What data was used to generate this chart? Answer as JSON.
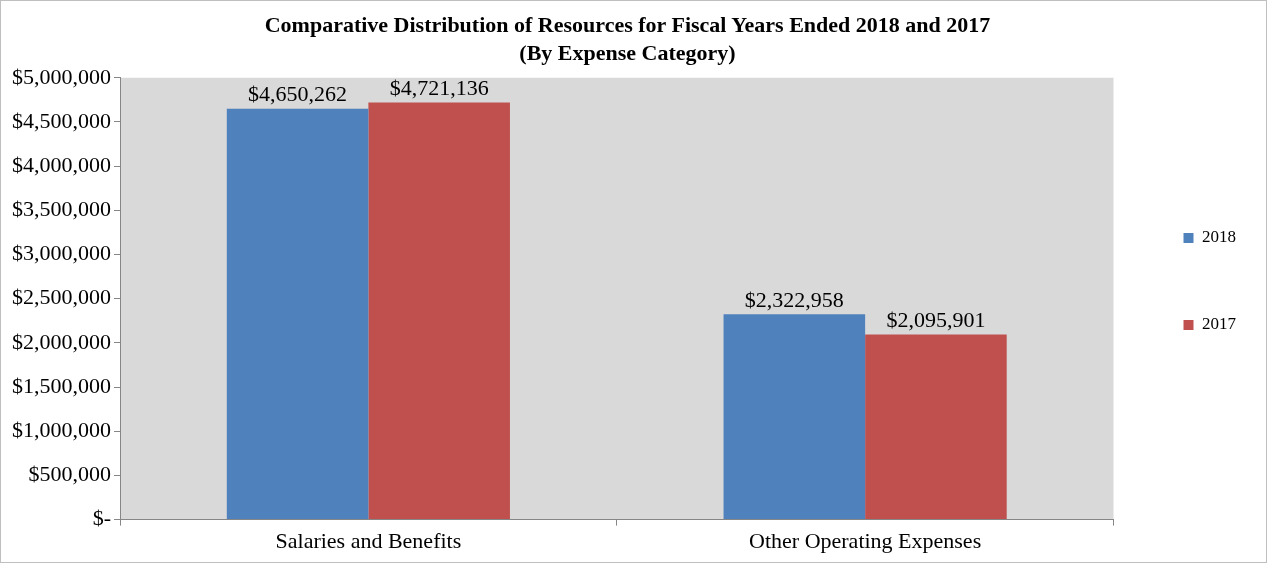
{
  "chart_data": {
    "type": "bar",
    "title": "Comparative Distribution of Resources for Fiscal Years Ended 2018 and 2017",
    "subtitle": "(By Expense Category)",
    "categories": [
      "Salaries and Benefits",
      "Other Operating Expenses"
    ],
    "series": [
      {
        "name": "2018",
        "color": "#4f81bd",
        "values": [
          4650262,
          2322958
        ],
        "value_labels": [
          "$4,650,262",
          "$2,322,958"
        ]
      },
      {
        "name": "2017",
        "color": "#c0504d",
        "values": [
          4721136,
          2095901
        ],
        "value_labels": [
          "$4,721,136",
          "$2,095,901"
        ]
      }
    ],
    "ylim": [
      0,
      5000000
    ],
    "yticks": [
      {
        "value": 0,
        "label": "$-"
      },
      {
        "value": 500000,
        "label": "$500,000"
      },
      {
        "value": 1000000,
        "label": "$1,000,000"
      },
      {
        "value": 1500000,
        "label": "$1,500,000"
      },
      {
        "value": 2000000,
        "label": "$2,000,000"
      },
      {
        "value": 2500000,
        "label": "$2,500,000"
      },
      {
        "value": 3000000,
        "label": "$3,000,000"
      },
      {
        "value": 3500000,
        "label": "$3,500,000"
      },
      {
        "value": 4000000,
        "label": "$4,000,000"
      },
      {
        "value": 4500000,
        "label": "$4,500,000"
      },
      {
        "value": 5000000,
        "label": "$5,000,000"
      }
    ],
    "grid": false,
    "legend": "right"
  }
}
